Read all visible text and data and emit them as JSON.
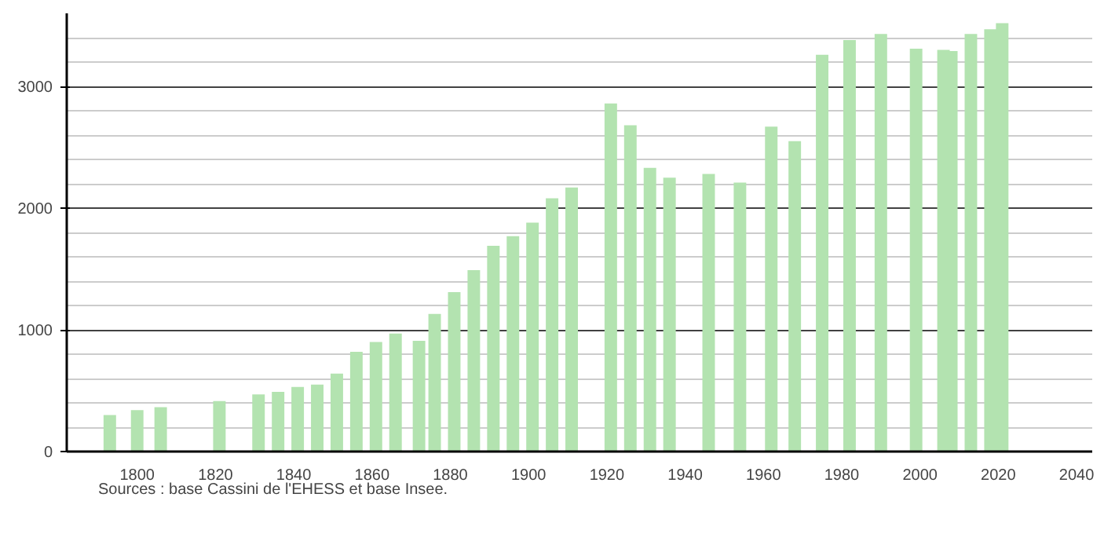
{
  "chart_data": {
    "type": "bar",
    "x": [
      1793,
      1800,
      1806,
      1821,
      1831,
      1836,
      1841,
      1846,
      1851,
      1856,
      1861,
      1866,
      1872,
      1876,
      1881,
      1886,
      1891,
      1896,
      1901,
      1906,
      1911,
      1921,
      1926,
      1931,
      1936,
      1946,
      1954,
      1962,
      1968,
      1975,
      1982,
      1990,
      1999,
      2006,
      2008,
      2013,
      2018,
      2021
    ],
    "values": [
      300,
      340,
      365,
      415,
      470,
      490,
      530,
      550,
      640,
      820,
      900,
      970,
      910,
      1130,
      1310,
      1490,
      1690,
      1770,
      1880,
      2080,
      2170,
      2860,
      2680,
      2330,
      2250,
      2280,
      2210,
      2670,
      2550,
      3260,
      3380,
      3430,
      3310,
      3300,
      3290,
      3430,
      3470,
      3520
    ],
    "color": "#b3e3b0",
    "xlim": [
      1782,
      2044
    ],
    "xticks": [
      1800,
      1820,
      1840,
      1860,
      1880,
      1900,
      1920,
      1940,
      1960,
      1980,
      2000,
      2020,
      2040
    ],
    "ylim": [
      0,
      3600
    ],
    "yticks": [
      0,
      1000,
      2000,
      3000
    ],
    "grid": "y",
    "annotations": [
      "Sources : base Cassini de l'EHESS et base Insee."
    ]
  }
}
